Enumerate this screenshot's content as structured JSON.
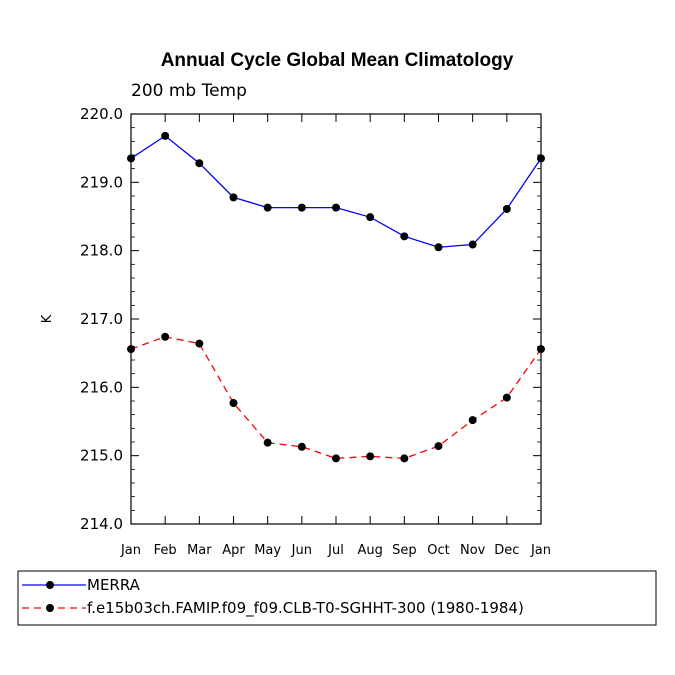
{
  "chart_data": {
    "type": "line",
    "title": "Annual Cycle Global Mean Climatology",
    "subtitle": "200 mb Temp",
    "xlabel": "",
    "ylabel": "K",
    "categories": [
      "Jan",
      "Feb",
      "Mar",
      "Apr",
      "May",
      "Jun",
      "Jul",
      "Aug",
      "Sep",
      "Oct",
      "Nov",
      "Dec",
      "Jan"
    ],
    "ylim": [
      214.0,
      220.0
    ],
    "yticks": [
      "214.0",
      "215.0",
      "216.0",
      "217.0",
      "218.0",
      "219.0",
      "220.0"
    ],
    "series": [
      {
        "name": "MERRA",
        "color": "#0000ff",
        "style": "solid",
        "values": [
          219.35,
          219.68,
          219.28,
          218.78,
          218.63,
          218.63,
          218.63,
          218.49,
          218.21,
          218.05,
          218.09,
          218.61,
          219.35
        ]
      },
      {
        "name": "f.e15b03ch.FAMIP.f09_f09.CLB-T0-SGHHT-300 (1980-1984)",
        "color": "#ff0000",
        "style": "dashed",
        "values": [
          216.56,
          216.74,
          216.64,
          215.77,
          215.19,
          215.13,
          214.96,
          214.99,
          214.96,
          215.14,
          215.52,
          215.85,
          216.56
        ]
      }
    ],
    "grid": false,
    "legend_position": "bottom"
  }
}
